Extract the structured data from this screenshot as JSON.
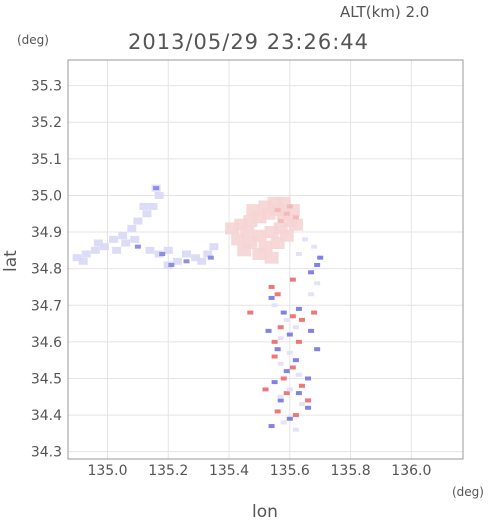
{
  "header": {
    "altitude": "ALT(km)  2.0",
    "timestamp": "2013/05/29  23:26:44",
    "y_unit": "(deg)",
    "x_unit": "(deg)"
  },
  "chart_data": {
    "type": "scatter",
    "title": "2013/05/29  23:26:44",
    "xlabel": "lon",
    "ylabel": "lat",
    "xlim": [
      134.87,
      136.17
    ],
    "ylim": [
      34.28,
      35.37
    ],
    "x_ticks": [
      "135.0",
      "135.2",
      "135.4",
      "135.6",
      "135.8",
      "136.0"
    ],
    "x_tick_values": [
      135.0,
      135.2,
      135.4,
      135.6,
      135.8,
      136.0
    ],
    "y_ticks": [
      "35.3",
      "35.2",
      "35.1",
      "35.0",
      "34.9",
      "34.8",
      "34.7",
      "34.6",
      "34.5",
      "34.4",
      "34.3"
    ],
    "y_tick_values": [
      35.3,
      35.2,
      35.1,
      35.0,
      34.9,
      34.8,
      34.7,
      34.6,
      34.5,
      34.4,
      34.3
    ],
    "grid": true,
    "colors": {
      "toward": "#8888ee",
      "away": "#ee7777",
      "neutral": "#eeeeff",
      "grid": "#e4e4e4",
      "frame": "#999999"
    },
    "series": [
      {
        "kind": "west-band",
        "color": "#d8d8f6",
        "points": [
          [
            134.9,
            34.83
          ],
          [
            134.93,
            34.84
          ],
          [
            134.96,
            34.85
          ],
          [
            134.99,
            34.86
          ],
          [
            135.02,
            34.88
          ],
          [
            135.05,
            34.89
          ],
          [
            135.08,
            34.91
          ],
          [
            135.06,
            34.87
          ],
          [
            134.92,
            34.82
          ],
          [
            134.97,
            34.87
          ],
          [
            135.03,
            34.85
          ],
          [
            135.09,
            34.88
          ],
          [
            135.1,
            34.93
          ],
          [
            135.13,
            34.95
          ],
          [
            135.15,
            34.97
          ],
          [
            135.17,
            35.0
          ],
          [
            135.16,
            35.02
          ],
          [
            135.12,
            34.97
          ],
          [
            135.14,
            34.85
          ],
          [
            135.17,
            34.84
          ],
          [
            135.2,
            34.85
          ],
          [
            135.23,
            34.82
          ],
          [
            135.2,
            34.81
          ],
          [
            135.26,
            34.84
          ],
          [
            135.29,
            34.83
          ],
          [
            135.31,
            34.82
          ],
          [
            135.33,
            34.84
          ],
          [
            135.35,
            34.86
          ]
        ]
      },
      {
        "kind": "west-band-strong",
        "color": "#8888e0",
        "points": [
          [
            135.16,
            35.02
          ],
          [
            135.21,
            34.81
          ],
          [
            135.26,
            34.82
          ],
          [
            135.34,
            34.83
          ],
          [
            135.18,
            34.84
          ],
          [
            135.1,
            34.86
          ]
        ]
      },
      {
        "kind": "northern-echo",
        "color": "#f6d4d4",
        "points": [
          [
            135.41,
            34.91
          ],
          [
            135.44,
            34.92
          ],
          [
            135.47,
            34.93
          ],
          [
            135.5,
            34.94
          ],
          [
            135.53,
            34.95
          ],
          [
            135.56,
            34.96
          ],
          [
            135.58,
            34.95
          ],
          [
            135.6,
            34.93
          ],
          [
            135.46,
            34.9
          ],
          [
            135.5,
            34.89
          ],
          [
            135.54,
            34.9
          ],
          [
            135.57,
            34.91
          ],
          [
            135.48,
            34.96
          ],
          [
            135.52,
            34.97
          ],
          [
            135.55,
            34.98
          ],
          [
            135.58,
            34.98
          ],
          [
            135.61,
            34.96
          ],
          [
            135.43,
            34.88
          ],
          [
            135.47,
            34.87
          ],
          [
            135.52,
            34.86
          ],
          [
            135.56,
            34.87
          ],
          [
            135.59,
            34.89
          ],
          [
            135.62,
            34.92
          ],
          [
            135.45,
            34.85
          ],
          [
            135.5,
            34.84
          ],
          [
            135.54,
            34.83
          ]
        ]
      },
      {
        "kind": "northern-echo-strong",
        "color": "#f2b8b8",
        "points": [
          [
            135.56,
            34.96
          ],
          [
            135.59,
            34.95
          ],
          [
            135.57,
            34.93
          ],
          [
            135.6,
            34.97
          ],
          [
            135.62,
            34.94
          ]
        ]
      },
      {
        "kind": "southern-cells-toward",
        "color": "#7a7ae6",
        "points": [
          [
            135.54,
            34.72
          ],
          [
            135.58,
            34.68
          ],
          [
            135.53,
            34.63
          ],
          [
            135.6,
            34.62
          ],
          [
            135.56,
            34.58
          ],
          [
            135.62,
            34.55
          ],
          [
            135.59,
            34.52
          ],
          [
            135.66,
            34.5
          ],
          [
            135.55,
            34.49
          ],
          [
            135.63,
            34.46
          ],
          [
            135.57,
            34.44
          ],
          [
            135.66,
            34.42
          ],
          [
            135.6,
            34.39
          ],
          [
            135.54,
            34.37
          ],
          [
            135.69,
            34.58
          ],
          [
            135.67,
            34.63
          ],
          [
            135.63,
            34.69
          ],
          [
            135.69,
            34.81
          ],
          [
            135.7,
            34.83
          ],
          [
            135.67,
            34.79
          ]
        ]
      },
      {
        "kind": "southern-cells-away",
        "color": "#ee7070",
        "points": [
          [
            135.56,
            34.73
          ],
          [
            135.61,
            34.67
          ],
          [
            135.64,
            34.66
          ],
          [
            135.57,
            34.64
          ],
          [
            135.63,
            34.6
          ],
          [
            135.55,
            34.56
          ],
          [
            135.61,
            34.53
          ],
          [
            135.58,
            34.5
          ],
          [
            135.64,
            34.48
          ],
          [
            135.52,
            34.47
          ],
          [
            135.59,
            34.46
          ],
          [
            135.66,
            34.44
          ],
          [
            135.56,
            34.41
          ],
          [
            135.62,
            34.4
          ],
          [
            135.55,
            34.6
          ],
          [
            135.68,
            34.68
          ],
          [
            135.61,
            34.77
          ],
          [
            135.54,
            34.75
          ],
          [
            135.47,
            34.68
          ]
        ]
      },
      {
        "kind": "southern-cells-neutral",
        "color": "#e2e2f8",
        "points": [
          [
            135.55,
            34.7
          ],
          [
            135.59,
            34.66
          ],
          [
            135.62,
            34.64
          ],
          [
            135.57,
            34.61
          ],
          [
            135.6,
            34.57
          ],
          [
            135.57,
            34.54
          ],
          [
            135.63,
            34.51
          ],
          [
            135.6,
            34.47
          ],
          [
            135.57,
            34.45
          ],
          [
            135.64,
            34.43
          ],
          [
            135.58,
            34.38
          ],
          [
            135.62,
            34.36
          ],
          [
            135.67,
            34.73
          ],
          [
            135.69,
            34.76
          ],
          [
            135.68,
            34.86
          ],
          [
            135.65,
            34.88
          ],
          [
            135.63,
            34.84
          ]
        ]
      }
    ]
  }
}
